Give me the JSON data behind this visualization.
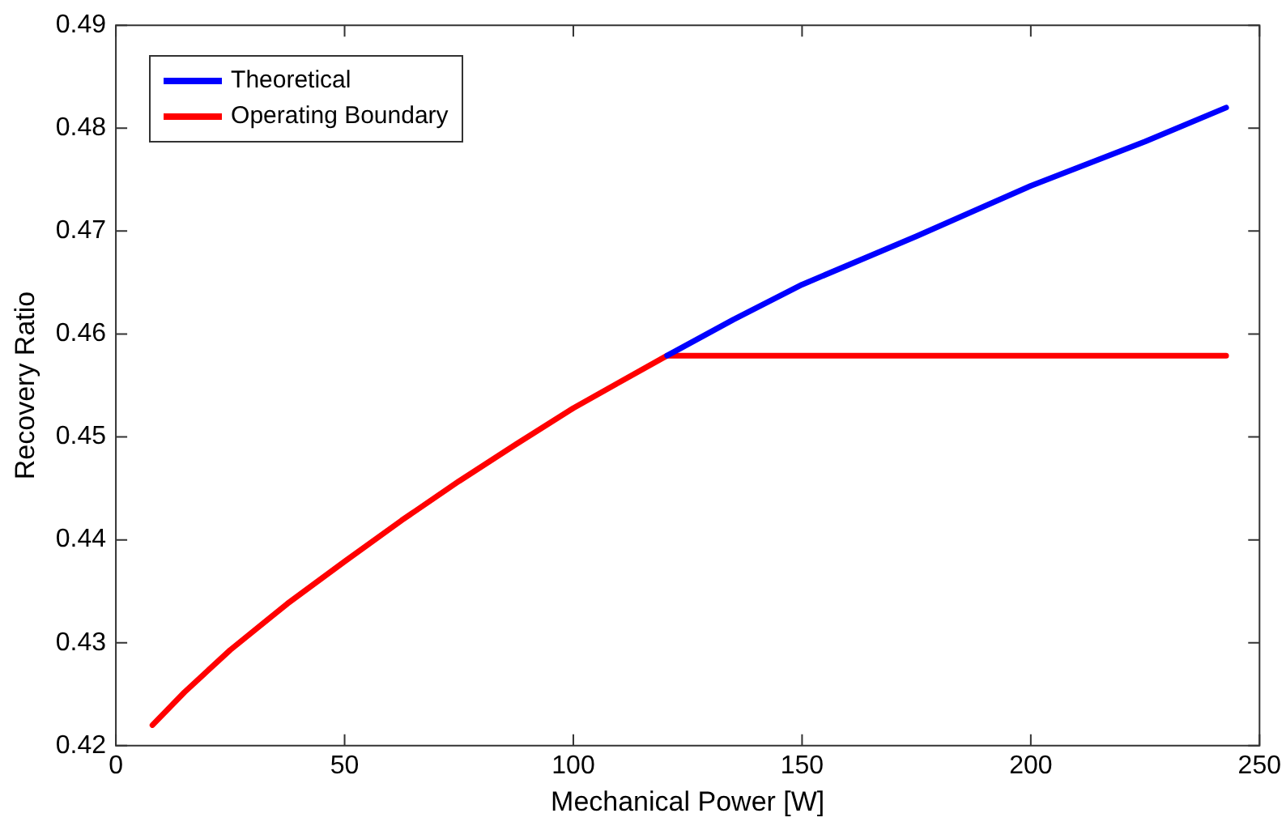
{
  "chart_data": {
    "type": "line",
    "xlabel": "Mechanical Power [W]",
    "ylabel": "Recovery Ratio",
    "xlim": [
      0,
      250
    ],
    "xticks": [
      0,
      50,
      100,
      150,
      200,
      250
    ],
    "ylim": [
      0.42,
      0.49
    ],
    "yticks": [
      0.42,
      0.43,
      0.44,
      0.45,
      0.46,
      0.47,
      0.48,
      0.49
    ],
    "grid": false,
    "legend": "top left",
    "marker": "none",
    "line_style": "solid",
    "series": [
      {
        "name": "Theoretical",
        "color": "#0000ff",
        "x": [
          120.5,
          135,
          150,
          175,
          200,
          225,
          242.7
        ],
        "values": [
          0.4579,
          0.4614,
          0.4648,
          0.4695,
          0.4744,
          0.4787,
          0.482
        ]
      },
      {
        "name": "Operating Boundary",
        "color": "#ff0000",
        "x": [
          8,
          15,
          25,
          37.5,
          50,
          62.5,
          75,
          87.5,
          100,
          110,
          120.5,
          242.7
        ],
        "values": [
          0.422,
          0.4252,
          0.4293,
          0.4338,
          0.4379,
          0.4419,
          0.4457,
          0.4493,
          0.4528,
          0.4553,
          0.4579,
          0.4579
        ]
      }
    ]
  }
}
